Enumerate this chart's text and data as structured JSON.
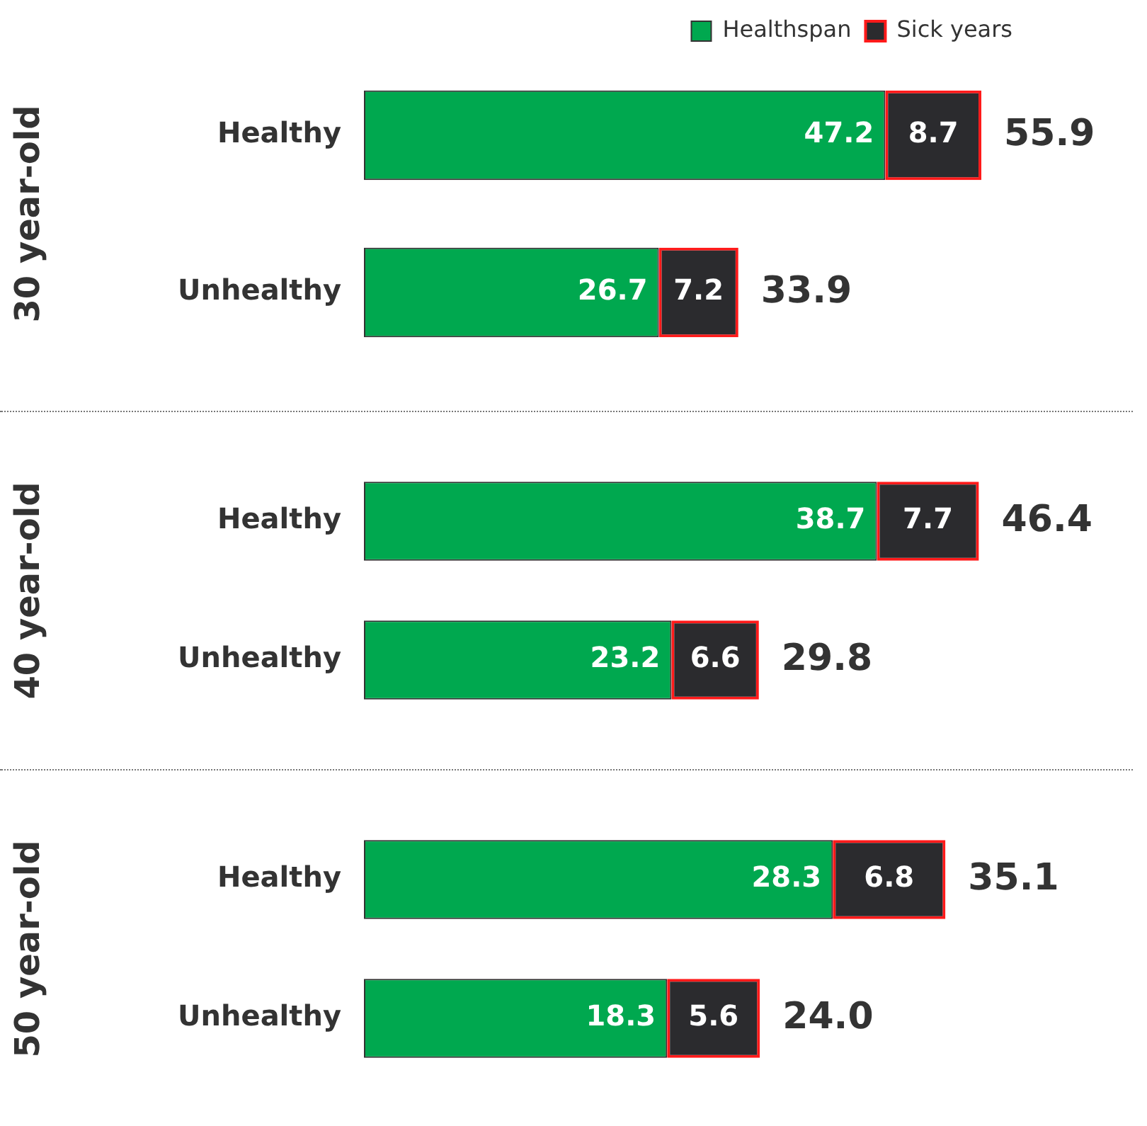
{
  "chart_data": [
    {
      "type": "bar",
      "orientation": "horizontal",
      "stacked": true,
      "ylabel": "30 year-old",
      "categories": [
        "Healthy",
        "Unhealthy"
      ],
      "series": [
        {
          "name": "Healthspan",
          "color": "#00a84f",
          "values": [
            47.2,
            26.7
          ]
        },
        {
          "name": "Sick years",
          "color": "#2b2b2e",
          "values": [
            8.7,
            7.2
          ]
        }
      ],
      "totals": [
        "55.9",
        "33.9"
      ],
      "data_labels": true,
      "tick_labels": "y",
      "grid": false,
      "legend": "top right"
    },
    {
      "type": "bar",
      "orientation": "horizontal",
      "stacked": true,
      "ylabel": "40 year-old",
      "categories": [
        "Healthy",
        "Unhealthy"
      ],
      "series": [
        {
          "color": "#00a84f",
          "values": [
            38.7,
            23.2
          ]
        },
        {
          "color": "#2b2b2e",
          "values": [
            7.7,
            6.6
          ]
        }
      ],
      "totals": [
        "46.4",
        "29.8"
      ],
      "data_labels": true,
      "tick_labels": "y",
      "grid": false
    },
    {
      "type": "bar",
      "orientation": "horizontal",
      "stacked": true,
      "ylabel": "50 year-old",
      "categories": [
        "Healthy",
        "Unhealthy"
      ],
      "series": [
        {
          "color": "#00a84f",
          "values": [
            28.3,
            18.3
          ]
        },
        {
          "color": "#2b2b2e",
          "values": [
            6.8,
            5.6
          ]
        }
      ],
      "totals": [
        "35.1",
        "24.0"
      ],
      "data_labels": true,
      "tick_labels": "y",
      "grid": false
    }
  ]
}
